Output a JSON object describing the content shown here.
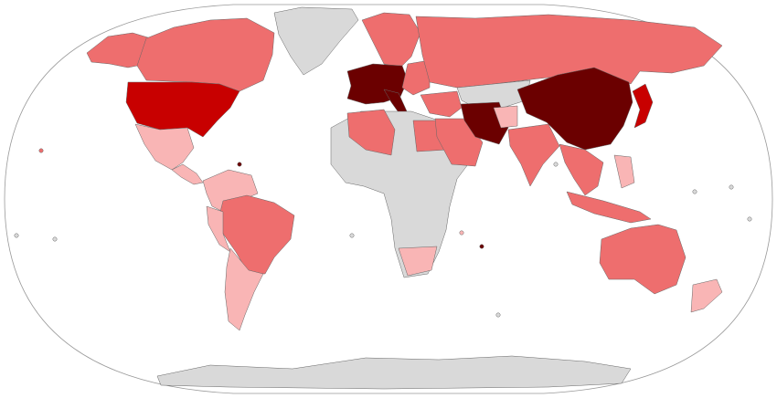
{
  "map": {
    "projection": "robinson",
    "fill_colors": [
      "#6b0000",
      "#c80000",
      "#ee6e6e",
      "#f9b5b5",
      "#d9d9d9"
    ],
    "border_color": "#666666",
    "ocean_color": "#ffffff"
  }
}
